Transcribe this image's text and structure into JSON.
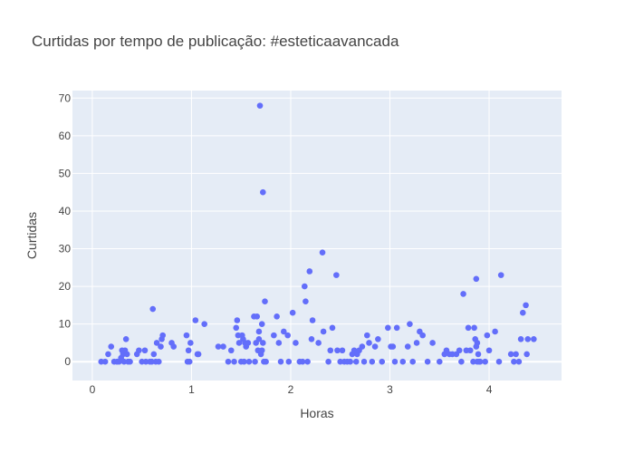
{
  "chart_data": {
    "type": "scatter",
    "title": "Curtidas por tempo de publicação: #esteticaavancada",
    "xlabel": "Horas",
    "ylabel": "Curtidas",
    "xlim": [
      -0.2,
      4.73
    ],
    "ylim": [
      -5,
      72
    ],
    "xticks": [
      0,
      1,
      2,
      3,
      4
    ],
    "yticks": [
      0,
      10,
      20,
      30,
      40,
      50,
      60,
      70
    ],
    "grid": true,
    "legend": "none",
    "colors": {
      "marker": "#636efa",
      "plot_bg": "#e5ecf6",
      "grid": "#ffffff"
    },
    "points": [
      [
        0.09,
        0
      ],
      [
        0.13,
        0
      ],
      [
        0.16,
        2
      ],
      [
        0.19,
        4
      ],
      [
        0.22,
        0
      ],
      [
        0.25,
        0
      ],
      [
        0.27,
        0
      ],
      [
        0.29,
        1
      ],
      [
        0.3,
        3
      ],
      [
        0.31,
        2
      ],
      [
        0.32,
        0
      ],
      [
        0.33,
        3
      ],
      [
        0.34,
        6
      ],
      [
        0.35,
        2
      ],
      [
        0.36,
        0
      ],
      [
        0.38,
        0
      ],
      [
        0.45,
        2
      ],
      [
        0.47,
        3
      ],
      [
        0.5,
        0
      ],
      [
        0.53,
        3
      ],
      [
        0.54,
        0
      ],
      [
        0.58,
        0
      ],
      [
        0.6,
        0
      ],
      [
        0.61,
        14
      ],
      [
        0.62,
        2
      ],
      [
        0.64,
        0
      ],
      [
        0.65,
        5
      ],
      [
        0.67,
        0
      ],
      [
        0.69,
        4
      ],
      [
        0.7,
        6
      ],
      [
        0.71,
        7
      ],
      [
        0.8,
        5
      ],
      [
        0.82,
        4
      ],
      [
        0.95,
        7
      ],
      [
        0.96,
        0
      ],
      [
        0.97,
        3
      ],
      [
        0.98,
        0
      ],
      [
        0.99,
        5
      ],
      [
        1.04,
        11
      ],
      [
        1.06,
        2
      ],
      [
        1.07,
        2
      ],
      [
        1.13,
        10
      ],
      [
        1.27,
        4
      ],
      [
        1.32,
        4
      ],
      [
        1.37,
        0
      ],
      [
        1.4,
        3
      ],
      [
        1.43,
        0
      ],
      [
        1.45,
        9
      ],
      [
        1.46,
        11
      ],
      [
        1.47,
        7
      ],
      [
        1.48,
        5
      ],
      [
        1.5,
        0
      ],
      [
        1.51,
        7
      ],
      [
        1.52,
        6
      ],
      [
        1.53,
        0
      ],
      [
        1.54,
        5
      ],
      [
        1.55,
        4
      ],
      [
        1.57,
        5
      ],
      [
        1.58,
        0
      ],
      [
        1.63,
        12
      ],
      [
        1.64,
        0
      ],
      [
        1.65,
        5
      ],
      [
        1.66,
        12
      ],
      [
        1.67,
        3
      ],
      [
        1.68,
        6
      ],
      [
        1.68,
        8
      ],
      [
        1.69,
        68
      ],
      [
        1.7,
        2
      ],
      [
        1.71,
        10
      ],
      [
        1.71,
        3
      ],
      [
        1.72,
        45
      ],
      [
        1.72,
        5
      ],
      [
        1.73,
        0
      ],
      [
        1.74,
        16
      ],
      [
        1.75,
        0
      ],
      [
        1.83,
        7
      ],
      [
        1.86,
        12
      ],
      [
        1.88,
        5
      ],
      [
        1.9,
        0
      ],
      [
        1.93,
        8
      ],
      [
        1.97,
        7
      ],
      [
        1.98,
        0
      ],
      [
        2.02,
        13
      ],
      [
        2.05,
        5
      ],
      [
        2.09,
        0
      ],
      [
        2.12,
        0
      ],
      [
        2.14,
        20
      ],
      [
        2.15,
        16
      ],
      [
        2.17,
        0
      ],
      [
        2.19,
        24
      ],
      [
        2.21,
        6
      ],
      [
        2.22,
        11
      ],
      [
        2.28,
        5
      ],
      [
        2.32,
        29
      ],
      [
        2.33,
        8
      ],
      [
        2.38,
        0
      ],
      [
        2.4,
        3
      ],
      [
        2.42,
        9
      ],
      [
        2.46,
        23
      ],
      [
        2.47,
        3
      ],
      [
        2.5,
        0
      ],
      [
        2.52,
        3
      ],
      [
        2.54,
        0
      ],
      [
        2.57,
        0
      ],
      [
        2.6,
        0
      ],
      [
        2.62,
        2
      ],
      [
        2.64,
        3
      ],
      [
        2.66,
        0
      ],
      [
        2.67,
        2
      ],
      [
        2.69,
        3
      ],
      [
        2.72,
        4
      ],
      [
        2.74,
        0
      ],
      [
        2.77,
        7
      ],
      [
        2.79,
        5
      ],
      [
        2.82,
        0
      ],
      [
        2.85,
        4
      ],
      [
        2.88,
        6
      ],
      [
        2.92,
        0
      ],
      [
        2.98,
        9
      ],
      [
        3.01,
        4
      ],
      [
        3.03,
        4
      ],
      [
        3.05,
        0
      ],
      [
        3.07,
        9
      ],
      [
        3.13,
        0
      ],
      [
        3.18,
        4
      ],
      [
        3.2,
        10
      ],
      [
        3.23,
        0
      ],
      [
        3.27,
        5
      ],
      [
        3.3,
        8
      ],
      [
        3.33,
        7
      ],
      [
        3.38,
        0
      ],
      [
        3.43,
        5
      ],
      [
        3.5,
        0
      ],
      [
        3.55,
        2
      ],
      [
        3.57,
        3
      ],
      [
        3.6,
        2
      ],
      [
        3.63,
        2
      ],
      [
        3.67,
        2
      ],
      [
        3.7,
        3
      ],
      [
        3.72,
        0
      ],
      [
        3.74,
        18
      ],
      [
        3.77,
        3
      ],
      [
        3.79,
        9
      ],
      [
        3.81,
        3
      ],
      [
        3.84,
        0
      ],
      [
        3.85,
        9
      ],
      [
        3.86,
        6
      ],
      [
        3.87,
        4
      ],
      [
        3.87,
        22
      ],
      [
        3.88,
        0
      ],
      [
        3.88,
        5
      ],
      [
        3.89,
        2
      ],
      [
        3.9,
        0
      ],
      [
        3.91,
        0
      ],
      [
        3.96,
        0
      ],
      [
        3.98,
        7
      ],
      [
        4.0,
        3
      ],
      [
        4.06,
        8
      ],
      [
        4.1,
        0
      ],
      [
        4.12,
        23
      ],
      [
        4.22,
        2
      ],
      [
        4.25,
        0
      ],
      [
        4.27,
        2
      ],
      [
        4.3,
        0
      ],
      [
        4.32,
        6
      ],
      [
        4.34,
        13
      ],
      [
        4.37,
        15
      ],
      [
        4.38,
        2
      ],
      [
        4.39,
        6
      ],
      [
        4.45,
        6
      ]
    ]
  }
}
